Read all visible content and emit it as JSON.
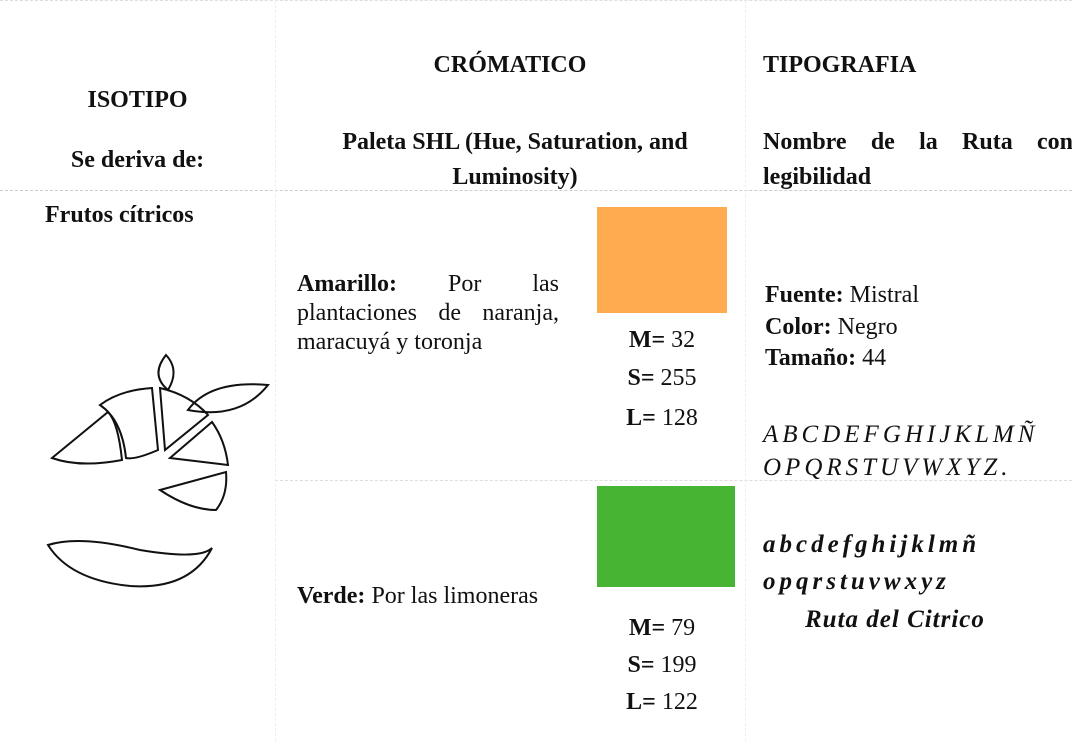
{
  "header": [
    {
      "title": "ISOTIPO",
      "subtitle": "Se deriva de:"
    },
    {
      "title": "CRÓMATICO",
      "subtitle": "Paleta SHL (Hue, Saturation, and Luminosity)"
    },
    {
      "title": "TIPOGRAFIA",
      "subtitle": "Nombre de la Ruta con legibilidad"
    }
  ],
  "isotipo": {
    "label": "Frutos cítricos"
  },
  "chromatic": [
    {
      "name": "Amarillo:",
      "description": "Por las plantaciones de naranja, maracuyá y toronja",
      "color": "#ffab4f",
      "values": [
        {
          "label": "M=",
          "value": 32
        },
        {
          "label": "S=",
          "value": 255
        },
        {
          "label": "L=",
          "value": 128
        }
      ]
    },
    {
      "name": "Verde:",
      "description": "Por las limoneras",
      "color": "#48b434",
      "values": [
        {
          "label": "M=",
          "value": 79
        },
        {
          "label": "S=",
          "value": 199
        },
        {
          "label": "L=",
          "value": 122
        }
      ]
    }
  ],
  "typography": {
    "properties": [
      {
        "label": "Fuente:",
        "value": "Mistral"
      },
      {
        "label": "Color:",
        "value": "Negro"
      },
      {
        "label": "Tamaño:",
        "value": 44
      }
    ],
    "samples": [
      "ABCDEFGHIJKLMÑ",
      "OPQRSTUVWXYZ.",
      "abcdefghijklmñ",
      "opqrstuvwxyz",
      "Ruta del Citrico"
    ]
  }
}
